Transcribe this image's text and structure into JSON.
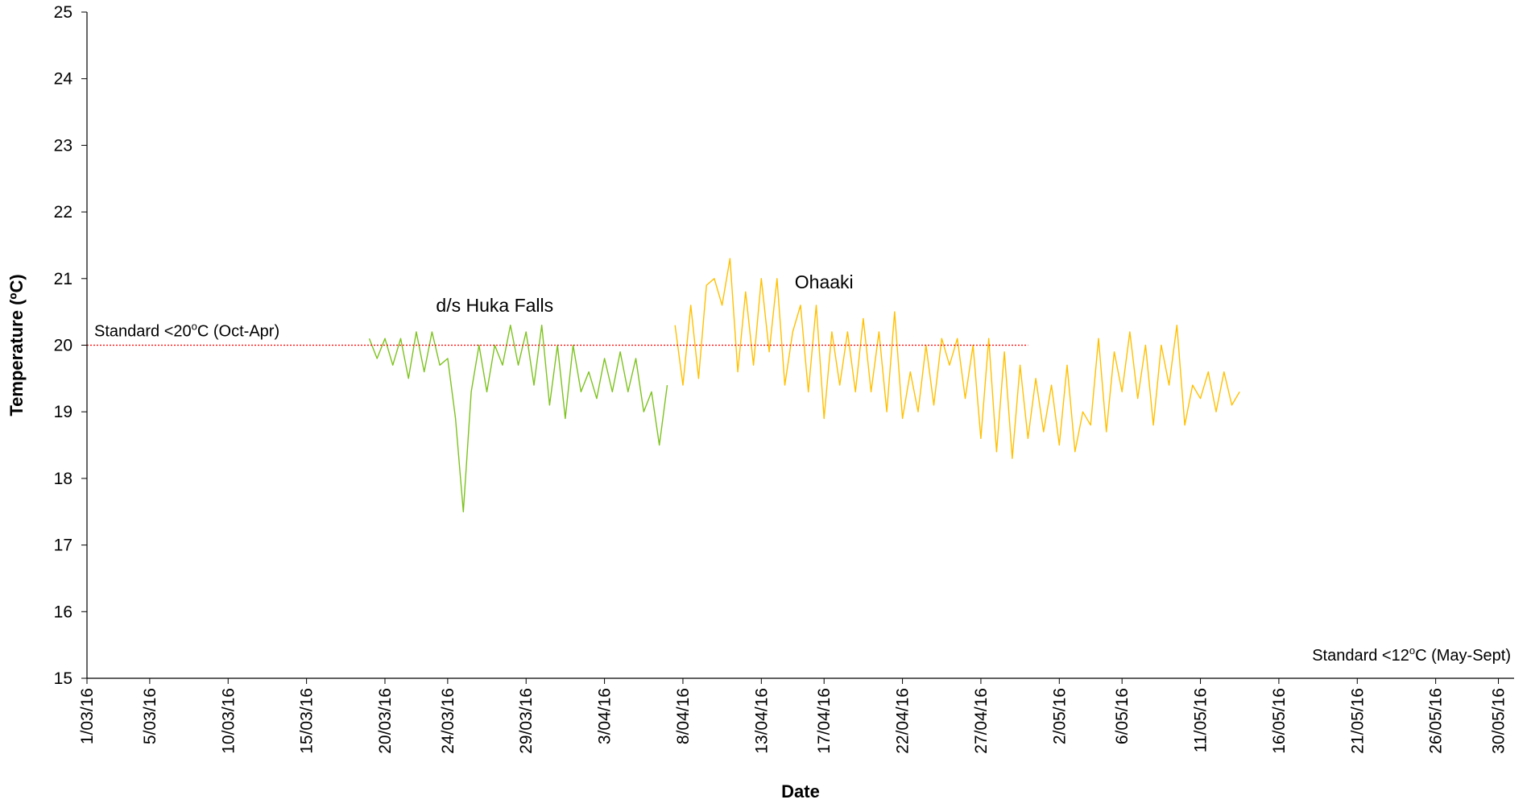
{
  "chart_data": {
    "type": "line",
    "title": "",
    "xlabel": "Date",
    "ylabel": "Temperature (ºC)",
    "ylim": [
      15,
      25
    ],
    "yticks": [
      15,
      16,
      17,
      18,
      19,
      20,
      21,
      22,
      23,
      24,
      25
    ],
    "xlim": [
      "2016-03-01",
      "2016-05-31"
    ],
    "xtick_labels": [
      {
        "date": "2016-03-01",
        "label": "1/03/16"
      },
      {
        "date": "2016-03-05",
        "label": "5/03/16"
      },
      {
        "date": "2016-03-10",
        "label": "10/03/16"
      },
      {
        "date": "2016-03-15",
        "label": "15/03/16"
      },
      {
        "date": "2016-03-20",
        "label": "20/03/16"
      },
      {
        "date": "2016-03-24",
        "label": "24/03/16"
      },
      {
        "date": "2016-03-29",
        "label": "29/03/16"
      },
      {
        "date": "2016-04-03",
        "label": "3/04/16"
      },
      {
        "date": "2016-04-08",
        "label": "8/04/16"
      },
      {
        "date": "2016-04-13",
        "label": "13/04/16"
      },
      {
        "date": "2016-04-17",
        "label": "17/04/16"
      },
      {
        "date": "2016-04-22",
        "label": "22/04/16"
      },
      {
        "date": "2016-04-27",
        "label": "27/04/16"
      },
      {
        "date": "2016-05-02",
        "label": "2/05/16"
      },
      {
        "date": "2016-05-06",
        "label": "6/05/16"
      },
      {
        "date": "2016-05-11",
        "label": "11/05/16"
      },
      {
        "date": "2016-05-16",
        "label": "16/05/16"
      },
      {
        "date": "2016-05-21",
        "label": "21/05/16"
      },
      {
        "date": "2016-05-26",
        "label": "26/05/16"
      },
      {
        "date": "2016-05-30",
        "label": "30/05/16"
      }
    ],
    "grid": false,
    "legend": "none",
    "series": [
      {
        "color": "#7dc21e",
        "x": [
          "2016-03-19",
          "2016-03-19T12:00",
          "2016-03-20",
          "2016-03-20T12:00",
          "2016-03-21",
          "2016-03-21T12:00",
          "2016-03-22",
          "2016-03-22T12:00",
          "2016-03-23",
          "2016-03-23T12:00",
          "2016-03-24",
          "2016-03-24T12:00",
          "2016-03-25",
          "2016-03-25T12:00",
          "2016-03-26",
          "2016-03-26T12:00",
          "2016-03-27",
          "2016-03-27T12:00",
          "2016-03-28",
          "2016-03-28T12:00",
          "2016-03-29",
          "2016-03-29T12:00",
          "2016-03-30",
          "2016-03-30T12:00",
          "2016-03-31",
          "2016-03-31T12:00",
          "2016-04-01",
          "2016-04-01T12:00",
          "2016-04-02",
          "2016-04-02T12:00",
          "2016-04-03",
          "2016-04-03T12:00",
          "2016-04-04",
          "2016-04-04T12:00",
          "2016-04-05",
          "2016-04-05T12:00",
          "2016-04-06",
          "2016-04-06T12:00",
          "2016-04-07"
        ],
        "y": [
          20.1,
          19.8,
          20.1,
          19.7,
          20.1,
          19.5,
          20.2,
          19.6,
          20.2,
          19.7,
          19.8,
          18.9,
          17.5,
          19.3,
          20.0,
          19.3,
          20.0,
          19.7,
          20.3,
          19.7,
          20.2,
          19.4,
          20.3,
          19.1,
          20.0,
          18.9,
          20.0,
          19.3,
          19.6,
          19.2,
          19.8,
          19.3,
          19.9,
          19.3,
          19.8,
          19.0,
          19.3,
          18.5,
          19.4
        ]
      },
      {
        "color": "#ffc000",
        "x": [
          "2016-04-07T12:00",
          "2016-04-08",
          "2016-04-08T12:00",
          "2016-04-09",
          "2016-04-09T12:00",
          "2016-04-10",
          "2016-04-10T12:00",
          "2016-04-11",
          "2016-04-11T12:00",
          "2016-04-12",
          "2016-04-12T12:00",
          "2016-04-13",
          "2016-04-13T12:00",
          "2016-04-14",
          "2016-04-14T12:00",
          "2016-04-15",
          "2016-04-15T12:00",
          "2016-04-16",
          "2016-04-16T12:00",
          "2016-04-17",
          "2016-04-17T12:00",
          "2016-04-18",
          "2016-04-18T12:00",
          "2016-04-19",
          "2016-04-19T12:00",
          "2016-04-20",
          "2016-04-20T12:00",
          "2016-04-21",
          "2016-04-21T12:00",
          "2016-04-22",
          "2016-04-22T12:00",
          "2016-04-23",
          "2016-04-23T12:00",
          "2016-04-24",
          "2016-04-24T12:00",
          "2016-04-25",
          "2016-04-25T12:00",
          "2016-04-26",
          "2016-04-26T12:00",
          "2016-04-27",
          "2016-04-27T12:00",
          "2016-04-28",
          "2016-04-28T12:00",
          "2016-04-29",
          "2016-04-29T12:00",
          "2016-04-30",
          "2016-04-30T12:00",
          "2016-05-01",
          "2016-05-01T12:00",
          "2016-05-02",
          "2016-05-02T12:00",
          "2016-05-03",
          "2016-05-03T12:00",
          "2016-05-04",
          "2016-05-04T12:00",
          "2016-05-05",
          "2016-05-05T12:00",
          "2016-05-06",
          "2016-05-06T12:00",
          "2016-05-07",
          "2016-05-07T12:00",
          "2016-05-08",
          "2016-05-08T12:00",
          "2016-05-09",
          "2016-05-09T12:00",
          "2016-05-10",
          "2016-05-10T12:00",
          "2016-05-11",
          "2016-05-11T12:00",
          "2016-05-12",
          "2016-05-12T12:00",
          "2016-05-13",
          "2016-05-13T12:00"
        ],
        "y": [
          20.3,
          19.4,
          20.6,
          19.5,
          20.9,
          21.0,
          20.6,
          21.3,
          19.6,
          20.8,
          19.7,
          21.0,
          19.9,
          21.0,
          19.4,
          20.2,
          20.6,
          19.3,
          20.6,
          18.9,
          20.2,
          19.4,
          20.2,
          19.3,
          20.4,
          19.3,
          20.2,
          19.0,
          20.5,
          18.9,
          19.6,
          19.0,
          20.0,
          19.1,
          20.1,
          19.7,
          20.1,
          19.2,
          20.0,
          18.6,
          20.1,
          18.4,
          19.9,
          18.3,
          19.7,
          18.6,
          19.5,
          18.7,
          19.4,
          18.5,
          19.7,
          18.4,
          19.0,
          18.8,
          20.1,
          18.7,
          19.9,
          19.3,
          20.2,
          19.2,
          20.0,
          18.8,
          20.0,
          19.4,
          20.3,
          18.8,
          19.4,
          19.2,
          19.6,
          19.0,
          19.6,
          19.1,
          19.3
        ]
      },
      {
        "color": "#ff0000",
        "x": [
          "2016-03-01",
          "2016-04-30"
        ],
        "y": [
          20,
          20
        ]
      }
    ],
    "annotations": [
      {
        "text": "d/s Huka Falls",
        "x": "2016-03-27",
        "y": 20.5
      },
      {
        "text": "Ohaaki",
        "x": "2016-04-17",
        "y": 20.85
      }
    ],
    "standard_labels": {
      "oct_apr": {
        "prefix": "Standard <20",
        "sup": "o",
        "suffix": "C (Oct-Apr)"
      },
      "may_sept": {
        "prefix": "Standard <12",
        "sup": "o",
        "suffix": "C (May-Sept)"
      }
    }
  }
}
